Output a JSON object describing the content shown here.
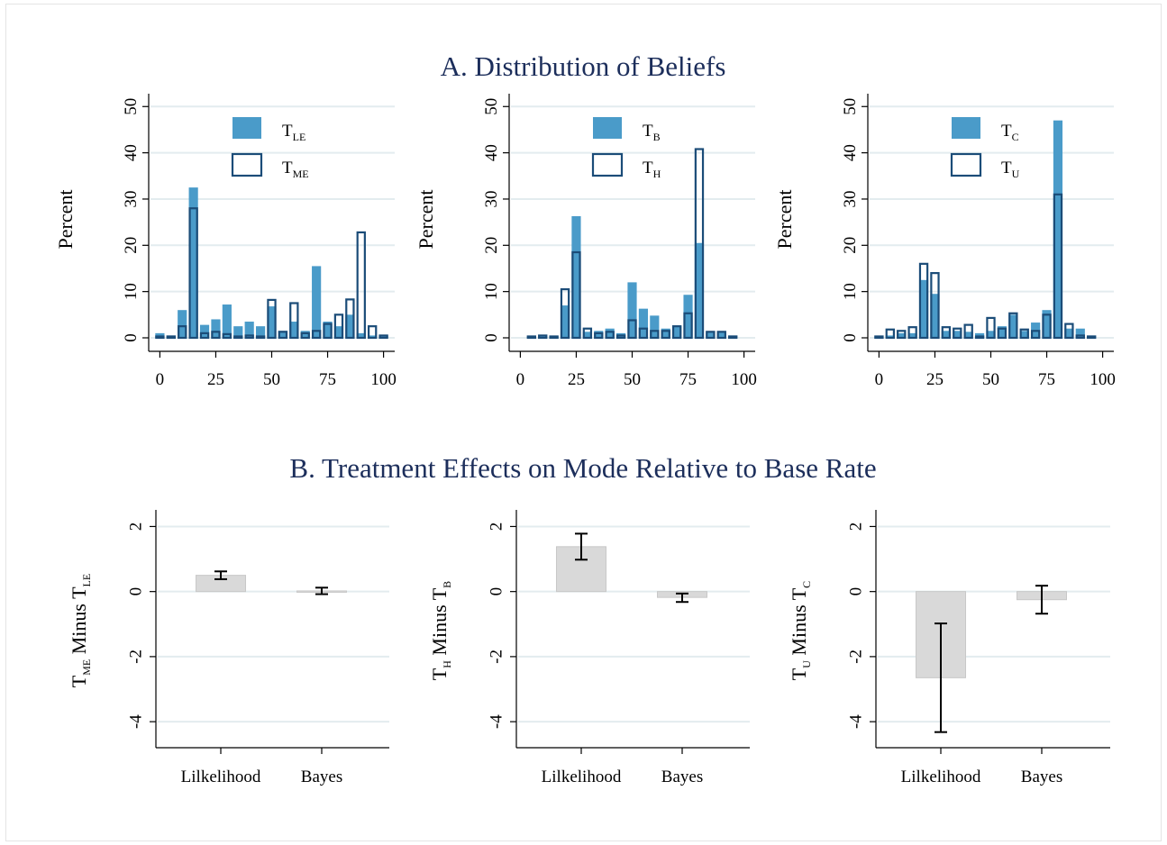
{
  "titles": {
    "top": "A. Distribution of Beliefs",
    "bottom": "B. Treatment Effects on Mode Relative to Base Rate"
  },
  "colors": {
    "filled_bar": "#4a9bc9",
    "outline_bar": "#1b4c78",
    "effect_bar": "#d9d9d9",
    "title": "#1c2e5b",
    "grid": "#e3ecef"
  },
  "chart_data": [
    {
      "type": "bar",
      "panel": "A",
      "ylabel": "Percent",
      "x_ticks": [
        "0",
        "25",
        "50",
        "75",
        "100"
      ],
      "y_ticks": [
        "0",
        "10",
        "20",
        "30",
        "40",
        "50"
      ],
      "xlim": [
        -5,
        105
      ],
      "ylim": [
        0,
        52
      ],
      "legend_position": "top-center",
      "x": [
        0,
        5,
        10,
        15,
        20,
        25,
        30,
        35,
        40,
        45,
        50,
        55,
        60,
        65,
        70,
        75,
        80,
        85,
        90,
        95,
        100
      ],
      "series": [
        {
          "name": "LE",
          "legend_main": "T",
          "legend_sub": "LE",
          "style": "filled",
          "values": [
            1,
            0.5,
            6,
            32.5,
            2.8,
            4,
            7.2,
            2.5,
            3.5,
            2.5,
            6.8,
            1.5,
            3.5,
            1.5,
            15.5,
            3.5,
            2.5,
            5,
            1,
            0.5,
            0.5
          ]
        },
        {
          "name": "ME",
          "legend_main": "T",
          "legend_sub": "ME",
          "style": "outline",
          "values": [
            0.3,
            0.3,
            2.5,
            28,
            1,
            1.3,
            0.8,
            0.3,
            0.5,
            0.3,
            8.2,
            1.3,
            7.5,
            1,
            1.5,
            3,
            5,
            8.3,
            22.8,
            2.5,
            0.5
          ]
        }
      ]
    },
    {
      "type": "bar",
      "panel": "A",
      "ylabel": "Percent",
      "x_ticks": [
        "0",
        "25",
        "50",
        "75",
        "100"
      ],
      "y_ticks": [
        "0",
        "10",
        "20",
        "30",
        "40",
        "50"
      ],
      "xlim": [
        -5,
        105
      ],
      "ylim": [
        0,
        52
      ],
      "legend_position": "top-center",
      "x": [
        5,
        10,
        15,
        20,
        25,
        30,
        35,
        40,
        45,
        50,
        55,
        60,
        65,
        70,
        75,
        80,
        85,
        90,
        95
      ],
      "series": [
        {
          "name": "B",
          "legend_main": "T",
          "legend_sub": "B",
          "style": "filled",
          "values": [
            0.3,
            0.5,
            0.3,
            7,
            26.3,
            1.3,
            1.5,
            2,
            1,
            12,
            6.3,
            4.8,
            2,
            2.5,
            9.3,
            20.5,
            1.3,
            1.3,
            0.5
          ]
        },
        {
          "name": "H",
          "legend_main": "T",
          "legend_sub": "H",
          "style": "outline",
          "values": [
            0.3,
            0.5,
            0.3,
            10.5,
            18.5,
            2,
            1,
            1.3,
            0.5,
            3.8,
            2,
            1.5,
            1.5,
            2.5,
            5.3,
            40.8,
            1.3,
            1.3,
            0.3
          ]
        }
      ]
    },
    {
      "type": "bar",
      "panel": "A",
      "ylabel": "Percent",
      "x_ticks": [
        "0",
        "25",
        "50",
        "75",
        "100"
      ],
      "y_ticks": [
        "0",
        "10",
        "20",
        "30",
        "40",
        "50"
      ],
      "xlim": [
        -5,
        105
      ],
      "ylim": [
        0,
        52
      ],
      "legend_position": "top-center",
      "x": [
        0,
        5,
        10,
        15,
        20,
        25,
        30,
        35,
        40,
        45,
        50,
        55,
        60,
        65,
        70,
        75,
        80,
        85,
        90,
        95
      ],
      "series": [
        {
          "name": "C",
          "legend_main": "T",
          "legend_sub": "C",
          "style": "filled",
          "values": [
            0.3,
            0.5,
            1,
            1,
            12.5,
            9.5,
            1.5,
            1.5,
            1.3,
            1,
            1.5,
            2.5,
            5,
            1.5,
            3.3,
            6,
            47,
            2,
            2,
            0.5
          ]
        },
        {
          "name": "U",
          "legend_main": "T",
          "legend_sub": "U",
          "style": "outline",
          "values": [
            0.3,
            1.8,
            1.5,
            2.3,
            16,
            14,
            2.3,
            2,
            2.8,
            0.3,
            4.3,
            2,
            5.3,
            1.8,
            1.5,
            5,
            31,
            3,
            0.5,
            0.3
          ]
        }
      ]
    },
    {
      "type": "bar",
      "panel": "B",
      "ylabel_main": "T",
      "ylabel_sub1": "ME",
      "ylabel_mid": " Minus T",
      "ylabel_sub2": "LE",
      "categories": [
        "Lilkelihood",
        "Bayes"
      ],
      "values": [
        0.5,
        0.02
      ],
      "error_low": [
        0.38,
        -0.08
      ],
      "error_high": [
        0.62,
        0.12
      ],
      "y_ticks": [
        "2",
        "0",
        "-2",
        "-4"
      ],
      "ylim": [
        -4.8,
        2.4
      ]
    },
    {
      "type": "bar",
      "panel": "B",
      "ylabel_main": "T",
      "ylabel_sub1": "H",
      "ylabel_mid": " Minus T",
      "ylabel_sub2": "B",
      "categories": [
        "Lilkelihood",
        "Bayes"
      ],
      "values": [
        1.38,
        -0.18
      ],
      "error_low": [
        0.98,
        -0.32
      ],
      "error_high": [
        1.78,
        -0.06
      ],
      "y_ticks": [
        "2",
        "0",
        "-2",
        "-4"
      ],
      "ylim": [
        -4.8,
        2.4
      ]
    },
    {
      "type": "bar",
      "panel": "B",
      "ylabel_main": "T",
      "ylabel_sub1": "U",
      "ylabel_mid": " Minus T",
      "ylabel_sub2": "C",
      "categories": [
        "Lilkelihood",
        "Bayes"
      ],
      "values": [
        -2.65,
        -0.25
      ],
      "error_low": [
        -4.32,
        -0.68
      ],
      "error_high": [
        -0.98,
        0.18
      ],
      "y_ticks": [
        "2",
        "0",
        "-2",
        "-4"
      ],
      "ylim": [
        -4.8,
        2.4
      ]
    }
  ]
}
